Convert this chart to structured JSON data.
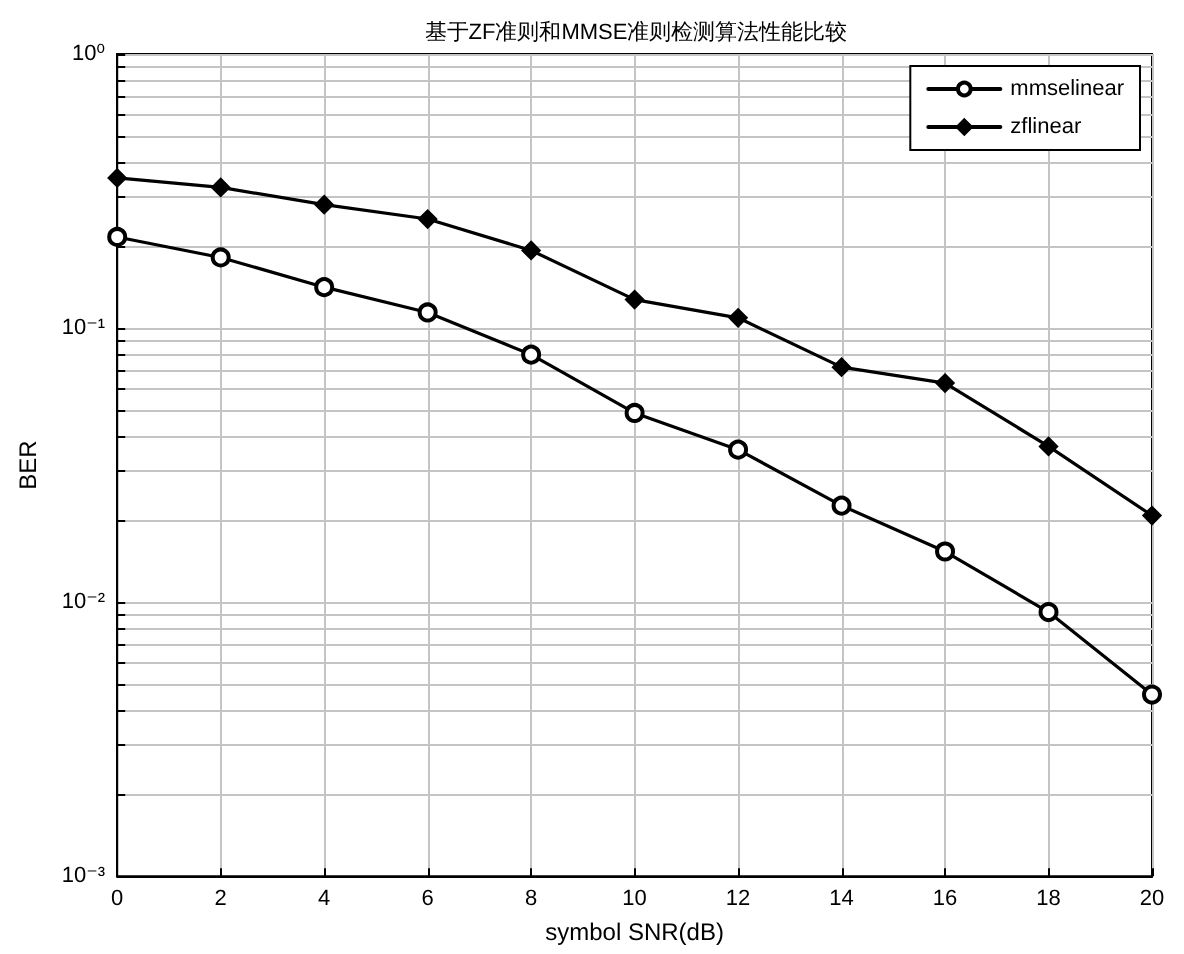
{
  "chart_data": {
    "type": "line",
    "title": "基于ZF准则和MMSE准则检测算法性能比较",
    "xlabel": "symbol SNR(dB)",
    "ylabel": "BER",
    "x": [
      0,
      2,
      4,
      6,
      8,
      10,
      12,
      14,
      16,
      18,
      20
    ],
    "series": [
      {
        "name": "mmselinear",
        "color": "#000000",
        "marker": "circle",
        "values": [
          0.215,
          0.181,
          0.141,
          0.114,
          0.08,
          0.049,
          0.036,
          0.0225,
          0.0153,
          0.0092,
          0.0046
        ]
      },
      {
        "name": "zflinear",
        "color": "#000000",
        "marker": "diamond",
        "values": [
          0.353,
          0.326,
          0.282,
          0.25,
          0.192,
          0.127,
          0.109,
          0.072,
          0.063,
          0.037,
          0.0207
        ]
      }
    ],
    "xlim": [
      0,
      20
    ],
    "xticks": [
      0,
      2,
      4,
      6,
      8,
      10,
      12,
      14,
      16,
      18,
      20
    ],
    "ylim": [
      0.001,
      1
    ],
    "log": "y",
    "yticks": [
      {
        "value": 0.001,
        "label": "10⁻³"
      },
      {
        "value": 0.002,
        "label": null
      },
      {
        "value": 0.003,
        "label": null
      },
      {
        "value": 0.004,
        "label": null
      },
      {
        "value": 0.005,
        "label": null
      },
      {
        "value": 0.006,
        "label": null
      },
      {
        "value": 0.007,
        "label": null
      },
      {
        "value": 0.008,
        "label": null
      },
      {
        "value": 0.009,
        "label": null
      },
      {
        "value": 0.01,
        "label": "10⁻²"
      },
      {
        "value": 0.02,
        "label": null
      },
      {
        "value": 0.03,
        "label": null
      },
      {
        "value": 0.04,
        "label": null
      },
      {
        "value": 0.05,
        "label": null
      },
      {
        "value": 0.06,
        "label": null
      },
      {
        "value": 0.07,
        "label": null
      },
      {
        "value": 0.08,
        "label": null
      },
      {
        "value": 0.09,
        "label": null
      },
      {
        "value": 0.1,
        "label": "10⁻¹"
      },
      {
        "value": 0.2,
        "label": null
      },
      {
        "value": 0.3,
        "label": null
      },
      {
        "value": 0.4,
        "label": null
      },
      {
        "value": 0.5,
        "label": null
      },
      {
        "value": 0.6,
        "label": null
      },
      {
        "value": 0.7,
        "label": null
      },
      {
        "value": 0.8,
        "label": null
      },
      {
        "value": 0.9,
        "label": null
      },
      {
        "value": 1,
        "label": "10⁰"
      }
    ],
    "grid": true,
    "legend": "top right",
    "line_style": "solid"
  }
}
